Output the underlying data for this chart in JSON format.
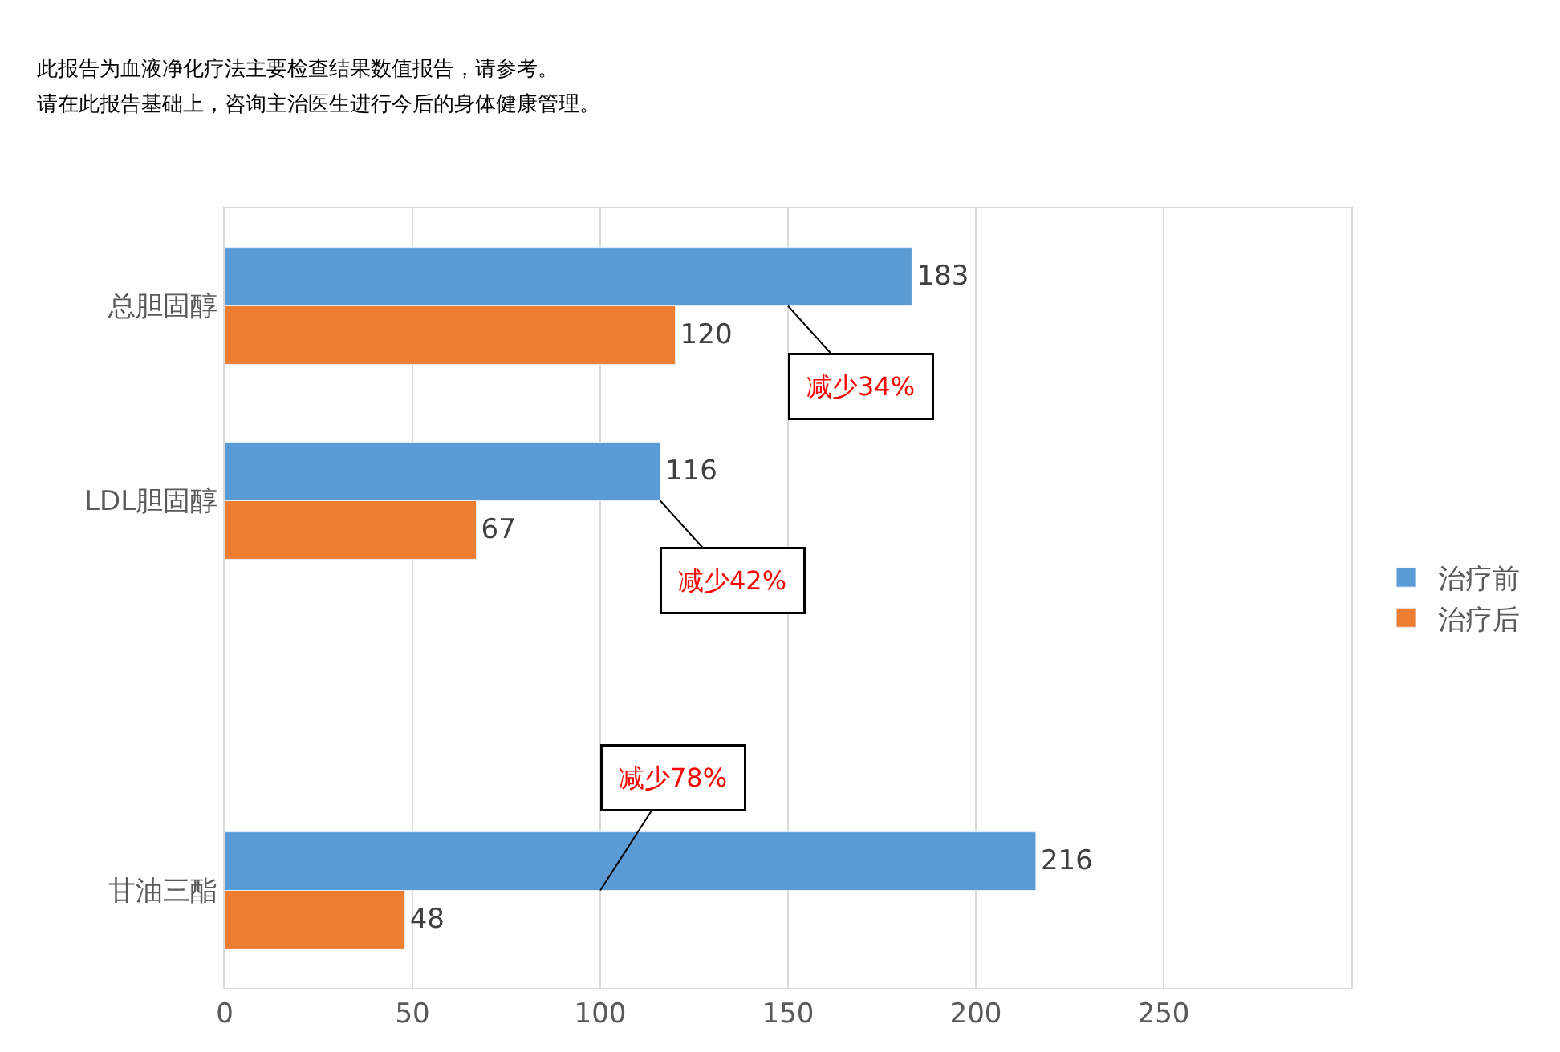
{
  "chart_data": {
    "type": "bar",
    "orientation": "horizontal",
    "categories": [
      "总胆固醇",
      "LDL胆固醇",
      null,
      "甘油三酯"
    ],
    "series": [
      {
        "name": "治疗前",
        "color": "#5b9bd5",
        "values": [
          183,
          116,
          null,
          216
        ]
      },
      {
        "name": "治疗后",
        "color": "#ed7d31",
        "values": [
          120,
          67,
          null,
          48
        ]
      }
    ],
    "xlim": [
      0,
      300
    ],
    "xticks": [
      0,
      50,
      100,
      150,
      200,
      250
    ],
    "grid": "x",
    "legend": "right",
    "data_labels": true,
    "annotations": [
      "此报告为血液净化疗法主要检查结果数值报告，请参考。",
      "请在此报告基础上，咨询主治医生进行今后的身体健康管理。",
      {
        "text": "减少34%",
        "x": 150,
        "y": "总胆固醇"
      },
      {
        "text": "减少42%",
        "x": 116,
        "y": "LDL胆固醇"
      },
      {
        "text": "减少78%",
        "x": 100,
        "y": "甘油三酯"
      }
    ]
  }
}
